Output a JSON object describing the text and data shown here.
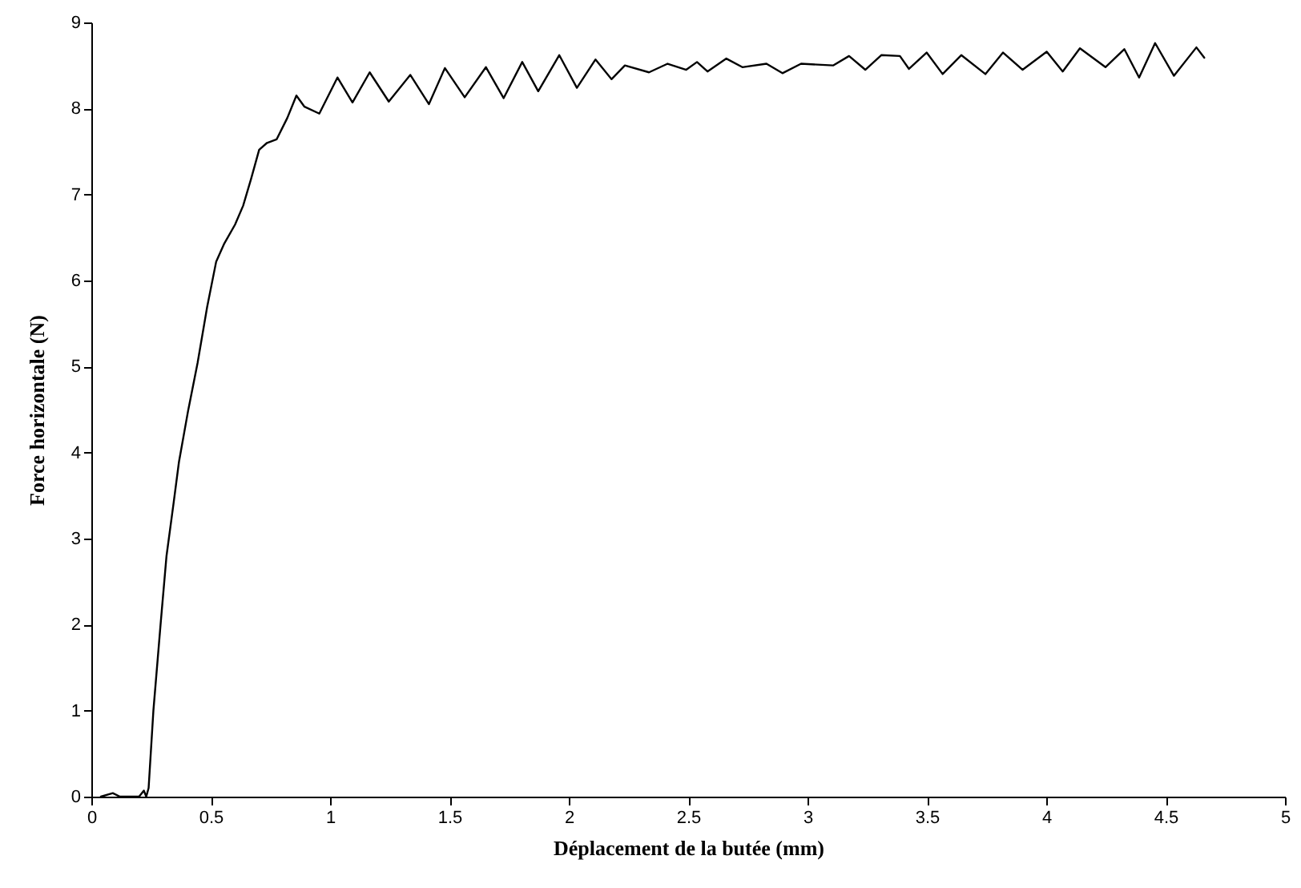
{
  "chart_data": {
    "type": "line",
    "xlabel": "Déplacement de la butée (mm)",
    "ylabel": "Force horizontale (N)",
    "xlim": [
      0,
      5
    ],
    "xticks": [
      0,
      0.5,
      1,
      1.5,
      2,
      2.5,
      3,
      3.5,
      4,
      4.5,
      5
    ],
    "ylim": [
      0,
      9
    ],
    "yticks": [
      0,
      1,
      2,
      3,
      4,
      5,
      6,
      7,
      8,
      9
    ],
    "grid": false,
    "marker": "none",
    "line_style": "solid",
    "series": [
      {
        "color": "#000000",
        "x": [
          0.04,
          0.09,
          0.12,
          0.2,
          0.22,
          0.23,
          0.24,
          0.26,
          0.29,
          0.315,
          0.345,
          0.367,
          0.405,
          0.445,
          0.485,
          0.523,
          0.557,
          0.602,
          0.636,
          0.669,
          0.703,
          0.736,
          0.776,
          0.821,
          0.859,
          0.893,
          0.955,
          1.031,
          1.094,
          1.166,
          1.246,
          1.336,
          1.414,
          1.481,
          1.564,
          1.653,
          1.727,
          1.805,
          1.872,
          1.96,
          2.034,
          2.112,
          2.179,
          2.235,
          2.336,
          2.414,
          2.492,
          2.537,
          2.581,
          2.66,
          2.727,
          2.828,
          2.895,
          2.973,
          3.107,
          3.174,
          3.242,
          3.309,
          3.387,
          3.425,
          3.499,
          3.566,
          3.644,
          3.745,
          3.819,
          3.901,
          4.002,
          4.069,
          4.141,
          4.248,
          4.327,
          4.389,
          4.456,
          4.535,
          4.629,
          4.662
        ],
        "values": [
          0,
          0.04,
          0,
          0,
          0.07,
          0,
          0.1,
          1.0,
          2.0,
          2.8,
          3.42,
          3.89,
          4.48,
          5.04,
          5.69,
          6.22,
          6.43,
          6.65,
          6.87,
          7.18,
          7.52,
          7.6,
          7.64,
          7.89,
          8.15,
          8.02,
          7.94,
          8.36,
          8.07,
          8.42,
          8.08,
          8.39,
          8.05,
          8.47,
          8.13,
          8.48,
          8.12,
          8.54,
          8.2,
          8.62,
          8.24,
          8.57,
          8.34,
          8.5,
          8.42,
          8.52,
          8.45,
          8.54,
          8.43,
          8.58,
          8.48,
          8.52,
          8.41,
          8.52,
          8.5,
          8.61,
          8.45,
          8.62,
          8.61,
          8.46,
          8.65,
          8.4,
          8.62,
          8.4,
          8.65,
          8.45,
          8.66,
          8.43,
          8.7,
          8.48,
          8.69,
          8.36,
          8.76,
          8.38,
          8.71,
          8.59
        ]
      }
    ]
  }
}
